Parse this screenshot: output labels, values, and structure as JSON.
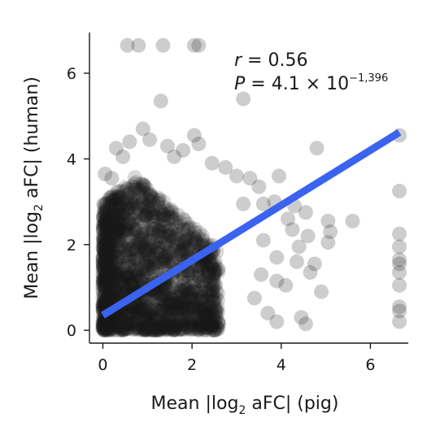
{
  "chart_data": {
    "type": "scatter",
    "xlabel": {
      "prefix": "Mean |log",
      "sub": "2",
      "suffix": " aFC| (pig)"
    },
    "ylabel": {
      "prefix": "Mean |log",
      "sub": "2",
      "suffix": " aFC| (human)"
    },
    "xlim": [
      -0.3,
      6.85
    ],
    "ylim": [
      -0.3,
      6.95
    ],
    "xticks": [
      0,
      2,
      4,
      6
    ],
    "yticks": [
      0,
      2,
      4,
      6
    ],
    "grid": false,
    "colors": {
      "points": "#1a1a1a",
      "fit_line": "#3a63f0",
      "axis": "#1a1a1a"
    },
    "annotation": {
      "r_symbol": "r",
      "r_value": " = 0.56",
      "p_symbol": "P",
      "p_value": " = 4.1 × 10",
      "p_exponent": "−1,396"
    },
    "fit_line": {
      "x": [
        0,
        6.65
      ],
      "y": [
        0.35,
        4.62
      ]
    },
    "outliers": [
      {
        "x": 0.55,
        "y": 6.65
      },
      {
        "x": 0.8,
        "y": 6.65
      },
      {
        "x": 1.35,
        "y": 6.65
      },
      {
        "x": 2.05,
        "y": 6.65
      },
      {
        "x": 2.15,
        "y": 6.65
      },
      {
        "x": 1.3,
        "y": 5.35
      },
      {
        "x": 3.15,
        "y": 5.4
      },
      {
        "x": 0.9,
        "y": 4.7
      },
      {
        "x": 1.05,
        "y": 4.45
      },
      {
        "x": 0.6,
        "y": 4.4
      },
      {
        "x": 2.05,
        "y": 4.55
      },
      {
        "x": 2.15,
        "y": 4.35
      },
      {
        "x": 1.45,
        "y": 4.3
      },
      {
        "x": 0.3,
        "y": 4.25
      },
      {
        "x": 0.45,
        "y": 4.05
      },
      {
        "x": 1.6,
        "y": 4.05
      },
      {
        "x": 1.8,
        "y": 4.2
      },
      {
        "x": 2.45,
        "y": 3.9
      },
      {
        "x": 2.75,
        "y": 3.8
      },
      {
        "x": 3.0,
        "y": 3.6
      },
      {
        "x": 3.3,
        "y": 3.55
      },
      {
        "x": 3.5,
        "y": 3.35
      },
      {
        "x": 3.95,
        "y": 3.6
      },
      {
        "x": 4.8,
        "y": 4.25
      },
      {
        "x": 0.05,
        "y": 3.65
      },
      {
        "x": 0.2,
        "y": 3.55
      },
      {
        "x": 3.15,
        "y": 2.95
      },
      {
        "x": 3.6,
        "y": 2.95
      },
      {
        "x": 3.85,
        "y": 3.0
      },
      {
        "x": 4.3,
        "y": 2.9
      },
      {
        "x": 4.15,
        "y": 2.6
      },
      {
        "x": 4.55,
        "y": 2.75
      },
      {
        "x": 5.05,
        "y": 2.55
      },
      {
        "x": 5.1,
        "y": 2.3
      },
      {
        "x": 5.6,
        "y": 2.55
      },
      {
        "x": 4.25,
        "y": 2.35
      },
      {
        "x": 4.6,
        "y": 2.2
      },
      {
        "x": 5.05,
        "y": 2.05
      },
      {
        "x": 4.4,
        "y": 1.95
      },
      {
        "x": 3.6,
        "y": 2.1
      },
      {
        "x": 3.9,
        "y": 1.7
      },
      {
        "x": 4.35,
        "y": 1.6
      },
      {
        "x": 4.75,
        "y": 1.55
      },
      {
        "x": 3.55,
        "y": 1.3
      },
      {
        "x": 3.9,
        "y": 1.15
      },
      {
        "x": 4.1,
        "y": 1.05
      },
      {
        "x": 3.4,
        "y": 0.75
      },
      {
        "x": 4.45,
        "y": 0.3
      },
      {
        "x": 4.55,
        "y": 0.15
      },
      {
        "x": 3.7,
        "y": 0.4
      },
      {
        "x": 3.9,
        "y": 0.2
      },
      {
        "x": 4.9,
        "y": 0.9
      },
      {
        "x": 4.65,
        "y": 1.35
      },
      {
        "x": 6.65,
        "y": 4.55
      },
      {
        "x": 6.65,
        "y": 3.25
      },
      {
        "x": 6.65,
        "y": 2.25
      },
      {
        "x": 6.65,
        "y": 1.95
      },
      {
        "x": 6.65,
        "y": 1.65
      },
      {
        "x": 6.65,
        "y": 1.55
      },
      {
        "x": 6.65,
        "y": 1.35
      },
      {
        "x": 6.65,
        "y": 1.05
      },
      {
        "x": 6.65,
        "y": 0.55
      },
      {
        "x": 6.65,
        "y": 0.45
      },
      {
        "x": 6.65,
        "y": 0.2
      }
    ]
  }
}
